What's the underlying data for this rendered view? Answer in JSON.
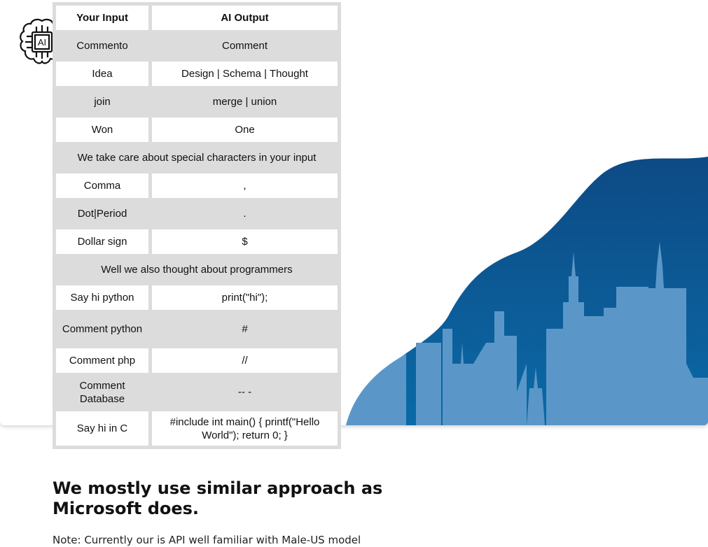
{
  "table": {
    "header": {
      "input": "Your Input",
      "output": "AI Output"
    },
    "rows": [
      {
        "input": "Commento",
        "output": "Comment"
      },
      {
        "input": "Idea",
        "output": "Design | Schema | Thought"
      },
      {
        "input": "join",
        "output": "merge | union"
      },
      {
        "input": "Won",
        "output": "One"
      },
      {
        "section": "We take care about special characters in your input"
      },
      {
        "input": "Comma",
        "output": ","
      },
      {
        "input": "Dot|Period",
        "output": "."
      },
      {
        "input": "Dollar sign",
        "output": "$"
      },
      {
        "section": "Well we also thought about programmers"
      },
      {
        "input": "Say hi python",
        "output": "print(\"hi\");"
      },
      {
        "input": "Comment python",
        "output": "#"
      },
      {
        "input": "Comment php",
        "output": "//"
      },
      {
        "input": "Comment Database",
        "output": "-- -"
      },
      {
        "input": "Say hi in C",
        "output": "#include int main() { printf(\"Hello World\"); return 0; }"
      }
    ]
  },
  "heading": "We mostly use similar approach as Microsoft does.",
  "note": "Note: Currently our is API well familiar with Male-US model",
  "logo": {
    "icon": "ai-chip-brain-icon",
    "label": "AI"
  },
  "colors": {
    "skyline_dark": "#0b4f8a",
    "skyline_light": "#5a97c8",
    "table_grey": "#dcdcdc"
  }
}
